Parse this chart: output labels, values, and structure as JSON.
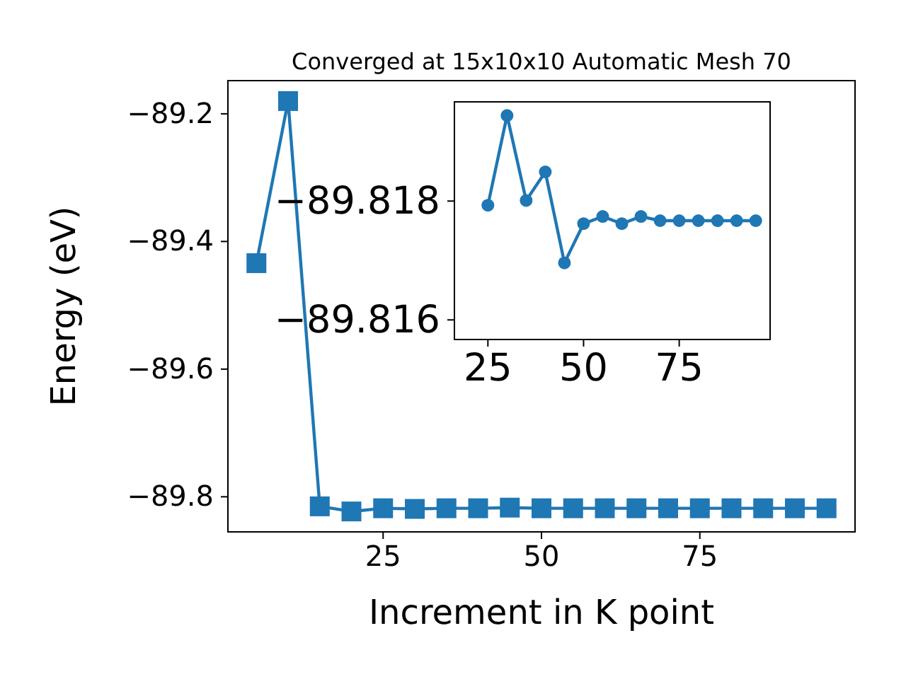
{
  "chart_data": [
    {
      "type": "line",
      "title": "Converged at 15x10x10 Automatic Mesh 70",
      "xlabel": "Increment in K point",
      "ylabel": "Energy (eV)",
      "x": [
        5,
        10,
        15,
        20,
        25,
        30,
        35,
        40,
        45,
        50,
        55,
        60,
        65,
        70,
        75,
        80,
        85,
        90,
        95
      ],
      "series": [
        {
          "color": "#1f77b4",
          "values": [
            -89.434,
            -89.18,
            -89.815,
            -89.823,
            -89.818,
            -89.819,
            -89.818,
            -89.818,
            -89.817,
            -89.818,
            -89.818,
            -89.818,
            -89.818,
            -89.818,
            -89.818,
            -89.818,
            -89.818,
            -89.818,
            -89.818
          ]
        }
      ],
      "xlim": [
        0.5,
        99.5
      ],
      "ylim": [
        -89.855,
        -89.148
      ],
      "xticks": [
        25,
        50,
        75
      ],
      "yticks": [
        {
          "value": -89.8,
          "label": "−89.8"
        },
        {
          "value": -89.6,
          "label": "−89.6"
        },
        {
          "value": -89.4,
          "label": "−89.4"
        },
        {
          "value": -89.2,
          "label": "−89.2"
        }
      ],
      "marker": "square"
    },
    {
      "type": "line",
      "x": [
        25,
        30,
        35,
        40,
        45,
        50,
        55,
        60,
        65,
        70,
        75,
        80,
        85,
        90,
        95
      ],
      "series": [
        {
          "color": "#1f77b4",
          "values": [
            -89.81793,
            -89.81944,
            -89.81801,
            -89.81849,
            -89.81696,
            -89.81762,
            -89.81774,
            -89.81762,
            -89.81774,
            -89.81767,
            -89.81767,
            -89.81767,
            -89.81767,
            -89.81767,
            -89.81767
          ]
        }
      ],
      "xlim": [
        16.25,
        98.75
      ],
      "ylim": [
        -89.81567,
        -89.81967
      ],
      "xticks": [
        25,
        50,
        75
      ],
      "yticks": [
        {
          "value": -89.818,
          "label": "−89.818"
        },
        {
          "value": -89.816,
          "label": "−89.816"
        }
      ],
      "marker": "circle"
    }
  ]
}
